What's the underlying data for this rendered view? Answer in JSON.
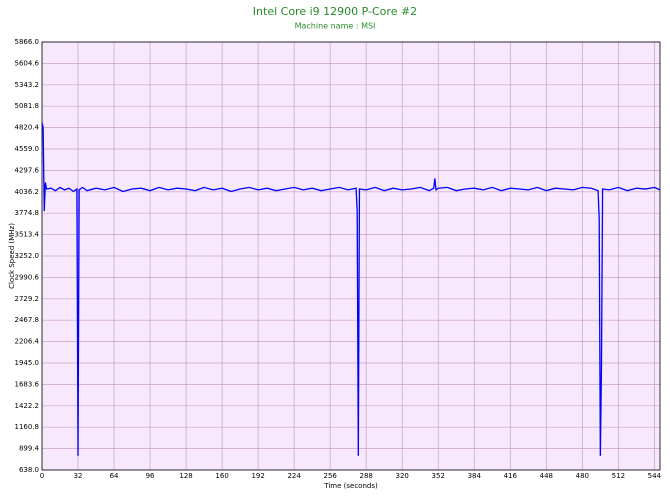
{
  "chart_data": {
    "type": "line",
    "title": "Intel Core i9 12900 P-Core #2",
    "subtitle": "Machine name : MSI",
    "x_label": "Time (seconds)",
    "y_label": "Clock Speed (MHz)",
    "x": [
      0,
      1,
      2,
      3,
      4,
      8,
      12,
      16,
      20,
      24,
      28,
      31,
      32,
      33,
      36,
      40,
      48,
      56,
      64,
      72,
      80,
      88,
      96,
      104,
      112,
      120,
      128,
      136,
      144,
      152,
      160,
      168,
      176,
      184,
      192,
      200,
      208,
      216,
      224,
      232,
      240,
      248,
      256,
      264,
      272,
      279,
      280,
      281,
      282,
      288,
      296,
      304,
      312,
      320,
      328,
      336,
      344,
      348,
      349,
      350,
      352,
      360,
      368,
      376,
      384,
      392,
      400,
      408,
      416,
      424,
      432,
      440,
      448,
      456,
      464,
      472,
      480,
      488,
      494,
      495,
      496,
      497,
      498,
      504,
      512,
      520,
      528,
      536,
      544,
      549
    ],
    "series": [
      {
        "name": "P-Core #2",
        "color": "#0000ff",
        "values": [
          4880,
          4820,
          3800,
          4150,
          4070,
          4080,
          4050,
          4090,
          4060,
          4080,
          4040,
          4070,
          810,
          4060,
          4090,
          4050,
          4080,
          4060,
          4090,
          4040,
          4070,
          4080,
          4050,
          4090,
          4060,
          4080,
          4070,
          4050,
          4090,
          4060,
          4080,
          4040,
          4070,
          4090,
          4060,
          4080,
          4050,
          4070,
          4090,
          4060,
          4080,
          4050,
          4070,
          4090,
          4060,
          4080,
          3800,
          810,
          4070,
          4060,
          4090,
          4050,
          4080,
          4060,
          4070,
          4090,
          4050,
          4080,
          4200,
          4060,
          4080,
          4090,
          4050,
          4070,
          4080,
          4060,
          4090,
          4050,
          4080,
          4070,
          4060,
          4090,
          4050,
          4080,
          4070,
          4060,
          4090,
          4080,
          4050,
          3700,
          810,
          1900,
          4070,
          4060,
          4090,
          4050,
          4080,
          4070,
          4090,
          4060
        ]
      }
    ],
    "xlim": [
      0,
      549
    ],
    "xticks": [
      0,
      32,
      64,
      96,
      128,
      160,
      192,
      224,
      256,
      288,
      320,
      352,
      384,
      416,
      448,
      480,
      512,
      544
    ],
    "ylim": [
      638,
      5866
    ],
    "yticks": [
      {
        "value": 638,
        "label": "638.0"
      },
      {
        "value": 899.4,
        "label": "899.4"
      },
      {
        "value": 1160.8,
        "label": "1160.8"
      },
      {
        "value": 1422.2,
        "label": "1422.2"
      },
      {
        "value": 1683.6,
        "label": "1683.6"
      },
      {
        "value": 1945,
        "label": "1945.0"
      },
      {
        "value": 2206.4,
        "label": "2206.4"
      },
      {
        "value": 2467.8,
        "label": "2467.8"
      },
      {
        "value": 2729.2,
        "label": "2729.2"
      },
      {
        "value": 2990.6,
        "label": "2990.6"
      },
      {
        "value": 3252,
        "label": "3252.0"
      },
      {
        "value": 3513.4,
        "label": "3513.4"
      },
      {
        "value": 3774.8,
        "label": "3774.8"
      },
      {
        "value": 4036.2,
        "label": "4036.2"
      },
      {
        "value": 4297.6,
        "label": "4297.6"
      },
      {
        "value": 4559,
        "label": "4559.0"
      },
      {
        "value": 4820.4,
        "label": "4820.4"
      },
      {
        "value": 5081.8,
        "label": "5081.8"
      },
      {
        "value": 5343.2,
        "label": "5343.2"
      },
      {
        "value": 5604.6,
        "label": "5604.6"
      },
      {
        "value": 5866,
        "label": "5866.0"
      }
    ],
    "grid": true
  }
}
